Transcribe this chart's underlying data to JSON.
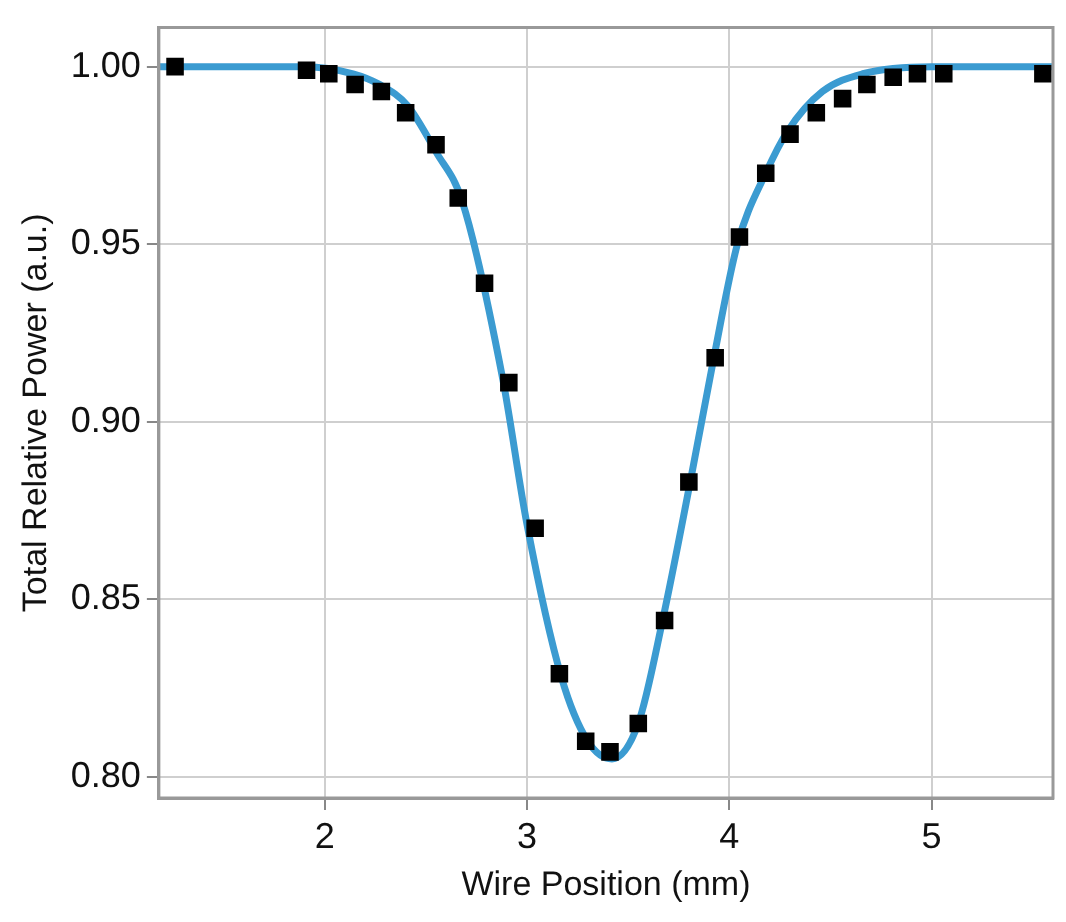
{
  "chart_data": {
    "type": "scatter",
    "xlabel": "Wire Position (mm)",
    "ylabel": "Total Relative Power (a.u.)",
    "xlim": [
      1.18,
      5.6
    ],
    "ylim": [
      0.794,
      1.011
    ],
    "xticks": [
      2,
      3,
      4,
      5
    ],
    "yticks": [
      {
        "value": 0.8,
        "label": "0.80"
      },
      {
        "value": 0.85,
        "label": "0.85"
      },
      {
        "value": 0.9,
        "label": "0.90"
      },
      {
        "value": 0.95,
        "label": "0.95"
      },
      {
        "value": 1.0,
        "label": "1.00"
      }
    ],
    "grid": true,
    "legend": false,
    "series": [
      {
        "type": "line",
        "color": "#3b9bd1",
        "marker": "none",
        "line_style": "solid",
        "x": [
          1.18,
          1.9,
          2.14,
          2.27,
          2.41,
          2.55,
          2.68,
          2.88,
          3.0,
          3.17,
          3.3,
          3.42,
          3.55,
          3.67,
          3.81,
          3.92,
          4.04,
          4.18,
          4.29,
          4.46,
          4.66,
          5.0,
          5.6
        ],
        "values": [
          1.0,
          1.0,
          0.998,
          0.995,
          0.989,
          0.976,
          0.962,
          0.912,
          0.871,
          0.828,
          0.81,
          0.805,
          0.815,
          0.844,
          0.884,
          0.917,
          0.95,
          0.97,
          0.982,
          0.993,
          0.998,
          1.0,
          1.0
        ]
      },
      {
        "color": "#000000",
        "marker": "square",
        "x": [
          1.26,
          1.91,
          2.02,
          2.15,
          2.28,
          2.4,
          2.55,
          2.66,
          2.79,
          2.91,
          3.04,
          3.16,
          3.29,
          3.41,
          3.55,
          3.68,
          3.8,
          3.93,
          4.05,
          4.18,
          4.3,
          4.43,
          4.56,
          4.68,
          4.81,
          4.93,
          5.06,
          5.55
        ],
        "values": [
          1.0,
          0.999,
          0.998,
          0.995,
          0.993,
          0.987,
          0.978,
          0.963,
          0.939,
          0.911,
          0.87,
          0.829,
          0.81,
          0.807,
          0.815,
          0.844,
          0.883,
          0.918,
          0.952,
          0.97,
          0.981,
          0.987,
          0.991,
          0.995,
          0.997,
          0.998,
          0.998,
          0.998
        ]
      }
    ]
  }
}
